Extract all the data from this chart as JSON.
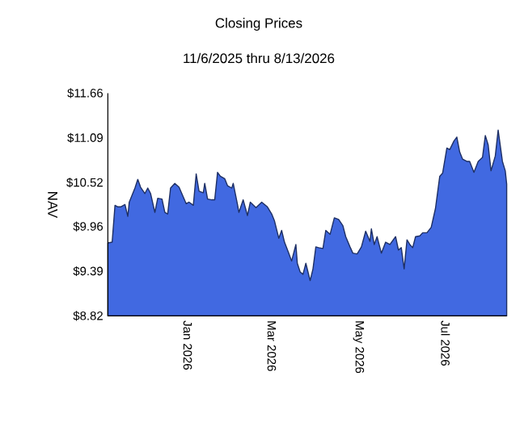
{
  "chart_data": {
    "type": "area",
    "title": "Closing Prices",
    "subtitle": "11/6/2025 thru 8/13/2026",
    "ylabel": "NAV",
    "xlim": [
      "2025-11-06",
      "2026-08-13"
    ],
    "xticks": [
      {
        "value": "2026-01-01",
        "label": "Jan  2026"
      },
      {
        "value": "2026-03-01",
        "label": "Mar  2026"
      },
      {
        "value": "2026-05-01",
        "label": "May  2026"
      },
      {
        "value": "2026-07-01",
        "label": "Jul  2026"
      }
    ],
    "ylim": [
      8.82,
      11.66
    ],
    "yticks": [
      {
        "value": 8.82,
        "label": "$8.82"
      },
      {
        "value": 9.39,
        "label": "$9.39"
      },
      {
        "value": 9.96,
        "label": "$9.96"
      },
      {
        "value": 10.52,
        "label": "$10.52"
      },
      {
        "value": 11.09,
        "label": "$11.09"
      },
      {
        "value": 11.66,
        "label": "$11.66"
      }
    ],
    "grid": false,
    "marker": "none",
    "x": [
      "2025-11-06",
      "2025-11-09",
      "2025-11-11",
      "2025-11-13",
      "2025-11-15",
      "2025-11-18",
      "2025-11-20",
      "2025-11-21",
      "2025-11-25",
      "2025-11-27",
      "2025-11-29",
      "2025-12-02",
      "2025-12-04",
      "2025-12-06",
      "2025-12-09",
      "2025-12-11",
      "2025-12-14",
      "2025-12-16",
      "2025-12-18",
      "2025-12-20",
      "2025-12-23",
      "2025-12-26",
      "2025-12-31",
      "2026-01-02",
      "2026-01-05",
      "2026-01-07",
      "2026-01-09",
      "2026-01-12",
      "2026-01-13",
      "2026-01-15",
      "2026-01-18",
      "2026-01-20",
      "2026-01-22",
      "2026-01-24",
      "2026-01-27",
      "2026-01-29",
      "2026-02-01",
      "2026-02-02",
      "2026-02-05",
      "2026-02-06",
      "2026-02-09",
      "2026-02-12",
      "2026-02-14",
      "2026-02-18",
      "2026-02-22",
      "2026-02-26",
      "2026-03-01",
      "2026-03-03",
      "2026-03-06",
      "2026-03-08",
      "2026-03-10",
      "2026-03-13",
      "2026-03-15",
      "2026-03-18",
      "2026-03-19",
      "2026-03-21",
      "2026-03-23",
      "2026-03-25",
      "2026-03-28",
      "2026-03-30",
      "2026-04-01",
      "2026-04-03",
      "2026-04-06",
      "2026-04-08",
      "2026-04-11",
      "2026-04-14",
      "2026-04-17",
      "2026-04-20",
      "2026-04-22",
      "2026-04-25",
      "2026-04-27",
      "2026-04-30",
      "2026-05-03",
      "2026-05-06",
      "2026-05-09",
      "2026-05-10",
      "2026-05-12",
      "2026-05-14",
      "2026-05-17",
      "2026-05-20",
      "2026-05-23",
      "2026-05-27",
      "2026-05-29",
      "2026-05-31",
      "2026-06-02",
      "2026-06-04",
      "2026-06-06",
      "2026-06-08",
      "2026-06-10",
      "2026-06-13",
      "2026-06-15",
      "2026-06-18",
      "2026-06-21",
      "2026-06-24",
      "2026-06-27",
      "2026-06-29",
      "2026-07-02",
      "2026-07-04",
      "2026-07-07",
      "2026-07-09",
      "2026-07-11",
      "2026-07-13",
      "2026-07-16",
      "2026-07-18",
      "2026-07-21",
      "2026-07-24",
      "2026-07-27",
      "2026-07-29",
      "2026-07-31",
      "2026-08-02",
      "2026-08-05",
      "2026-08-07",
      "2026-08-10",
      "2026-08-12",
      "2026-08-13"
    ],
    "series": [
      {
        "color": "#4169e1",
        "values": [
          9.75,
          9.76,
          10.23,
          10.21,
          10.21,
          10.24,
          10.09,
          10.27,
          10.45,
          10.56,
          10.46,
          10.38,
          10.45,
          10.38,
          10.14,
          10.32,
          10.31,
          10.14,
          10.12,
          10.45,
          10.51,
          10.46,
          10.25,
          10.27,
          10.23,
          10.63,
          10.41,
          10.39,
          10.51,
          10.31,
          10.3,
          10.3,
          10.65,
          10.6,
          10.57,
          10.48,
          10.45,
          10.51,
          10.24,
          10.14,
          10.3,
          10.1,
          10.27,
          10.2,
          10.27,
          10.21,
          10.12,
          10.03,
          9.81,
          9.91,
          9.76,
          9.62,
          9.52,
          9.73,
          9.49,
          9.38,
          9.35,
          9.49,
          9.27,
          9.42,
          9.7,
          9.69,
          9.68,
          9.91,
          9.86,
          10.07,
          10.05,
          9.97,
          9.83,
          9.7,
          9.62,
          9.61,
          9.7,
          9.9,
          9.77,
          9.93,
          9.73,
          9.83,
          9.62,
          9.76,
          9.73,
          9.83,
          9.66,
          9.69,
          9.42,
          9.79,
          9.73,
          9.69,
          9.83,
          9.84,
          9.88,
          9.88,
          9.95,
          10.19,
          10.6,
          10.64,
          10.96,
          10.94,
          11.05,
          11.1,
          10.91,
          10.82,
          10.79,
          10.79,
          10.65,
          10.79,
          10.84,
          11.12,
          11.0,
          10.67,
          10.86,
          11.19,
          10.79,
          10.67,
          10.5
        ]
      }
    ]
  }
}
